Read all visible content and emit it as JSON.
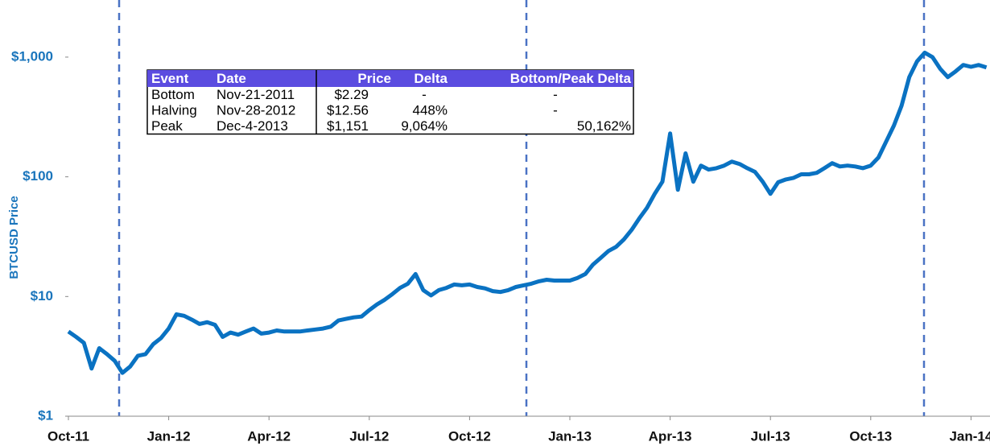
{
  "chart_data": {
    "type": "line",
    "y_label": "BTCUSD Price",
    "log_scale": true,
    "ylim": [
      1,
      3000
    ],
    "yticks": [
      {
        "value": 1,
        "label": "$1"
      },
      {
        "value": 10,
        "label": "$10"
      },
      {
        "value": 100,
        "label": "$100"
      },
      {
        "value": 1000,
        "label": "$1,000"
      }
    ],
    "categories": [
      "Oct-11",
      null,
      null,
      null,
      null,
      null,
      null,
      null,
      null,
      null,
      null,
      null,
      null,
      "Jan-12",
      null,
      null,
      null,
      null,
      null,
      null,
      null,
      null,
      null,
      null,
      null,
      null,
      "Apr-12",
      null,
      null,
      null,
      null,
      null,
      null,
      null,
      null,
      null,
      null,
      null,
      null,
      "Jul-12",
      null,
      null,
      null,
      null,
      null,
      null,
      null,
      null,
      null,
      null,
      null,
      null,
      "Oct-12",
      null,
      null,
      null,
      null,
      null,
      null,
      null,
      null,
      null,
      null,
      null,
      null,
      "Jan-13",
      null,
      null,
      null,
      null,
      null,
      null,
      null,
      null,
      null,
      null,
      null,
      null,
      "Apr-13",
      null,
      null,
      null,
      null,
      null,
      null,
      null,
      null,
      null,
      null,
      null,
      null,
      "Jul-13",
      null,
      null,
      null,
      null,
      null,
      null,
      null,
      null,
      null,
      null,
      null,
      null,
      "Oct-13",
      null,
      null,
      null,
      null,
      null,
      null,
      null,
      null,
      null,
      null,
      null,
      null,
      "Jan-14",
      null,
      null
    ],
    "series": [
      {
        "name": "BTCUSD",
        "color": "#0a72c2",
        "values": [
          5.1,
          4.6,
          4.1,
          2.5,
          3.7,
          3.3,
          2.9,
          2.3,
          2.6,
          3.2,
          3.3,
          4.0,
          4.5,
          5.4,
          7.1,
          6.9,
          6.4,
          5.9,
          6.1,
          5.8,
          4.6,
          5.0,
          4.8,
          5.1,
          5.4,
          4.9,
          5.0,
          5.2,
          5.1,
          5.1,
          5.1,
          5.2,
          5.3,
          5.4,
          5.6,
          6.3,
          6.5,
          6.7,
          6.8,
          7.7,
          8.6,
          9.4,
          10.5,
          11.8,
          12.8,
          15.4,
          11.3,
          10.2,
          11.3,
          11.8,
          12.6,
          12.4,
          12.6,
          12.0,
          11.7,
          11.1,
          10.9,
          11.3,
          12.0,
          12.4,
          12.8,
          13.4,
          13.8,
          13.6,
          13.6,
          13.6,
          14.3,
          15.4,
          18.5,
          21,
          24,
          26,
          30,
          36,
          45,
          55,
          72,
          91,
          230,
          78,
          157,
          91,
          124,
          115,
          118,
          124,
          134,
          128,
          118,
          110,
          91,
          72,
          90,
          95,
          98,
          105,
          105,
          108,
          118,
          130,
          122,
          124,
          122,
          118,
          124,
          145,
          197,
          268,
          392,
          680,
          920,
          1090,
          1000,
          800,
          680,
          760,
          860,
          830,
          860,
          820
        ]
      }
    ],
    "table": {
      "columns": [
        "Event",
        "Date",
        "Price",
        "Delta",
        "Bottom/Peak Delta"
      ],
      "rows": [
        [
          "Bottom",
          "Nov-21-2011",
          "$2.29",
          "-",
          "-"
        ],
        [
          "Halving",
          "Nov-28-2012",
          "$12.56",
          "448%",
          "-"
        ],
        [
          "Peak",
          "Dec-4-2013",
          "$1,151",
          "9,064%",
          "50,162%"
        ]
      ]
    }
  }
}
